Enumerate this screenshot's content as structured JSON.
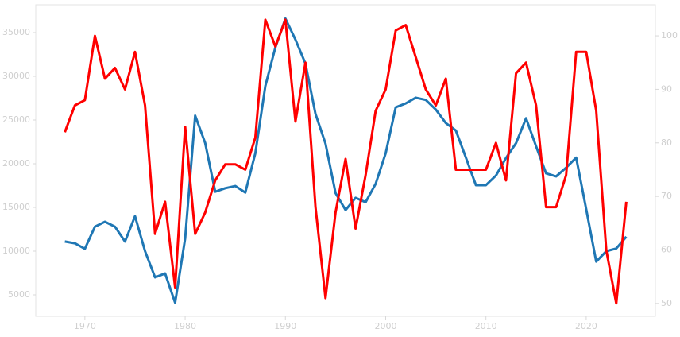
{
  "chart_data": {
    "type": "line",
    "x": [
      1968,
      1969,
      1970,
      1971,
      1972,
      1973,
      1974,
      1975,
      1976,
      1977,
      1978,
      1979,
      1980,
      1981,
      1982,
      1983,
      1984,
      1985,
      1986,
      1987,
      1988,
      1989,
      1990,
      1991,
      1992,
      1993,
      1994,
      1995,
      1996,
      1997,
      1998,
      1999,
      2000,
      2001,
      2002,
      2003,
      2004,
      2005,
      2006,
      2007,
      2008,
      2009,
      2010,
      2011,
      2012,
      2013,
      2014,
      2015,
      2016,
      2017,
      2018,
      2019,
      2020,
      2021,
      2022,
      2023,
      2024
    ],
    "series": [
      {
        "color": "#1f77b4",
        "axis": "y",
        "values": [
          11100,
          10900,
          10270,
          12800,
          13360,
          12800,
          11100,
          14000,
          10000,
          7000,
          7450,
          4100,
          11450,
          25500,
          22360,
          16800,
          17200,
          17450,
          16700,
          21200,
          28900,
          33300,
          36600,
          34200,
          31450,
          25700,
          22300,
          16650,
          14700,
          16100,
          15600,
          17700,
          21200,
          26450,
          26900,
          27550,
          27300,
          26200,
          24650,
          23800,
          20700,
          17550,
          17550,
          18650,
          20650,
          22350,
          25200,
          22000,
          18900,
          18550,
          19550,
          20700,
          14800,
          8800,
          10000,
          10300,
          11650
        ]
      },
      {
        "color": "#ff0000",
        "axis": "y2",
        "values": [
          82,
          87,
          88,
          100,
          92,
          94,
          90,
          97,
          87,
          63,
          69,
          53,
          83,
          63,
          67,
          73,
          76,
          76,
          75,
          81,
          103,
          98,
          103,
          84,
          95,
          68,
          51,
          67,
          77,
          64,
          74,
          86,
          90,
          101,
          102,
          96,
          90,
          87,
          92,
          75,
          75,
          75,
          75,
          80,
          73,
          93,
          95,
          87,
          68,
          68,
          74,
          97,
          97,
          86,
          60,
          50,
          69
        ]
      }
    ],
    "xlim": [
      1965.1,
      2026.9
    ],
    "xticks": [
      1970,
      1980,
      1990,
      2000,
      2010,
      2020
    ],
    "ylim": [
      2545,
      38180
    ],
    "yticks": [
      5000,
      10000,
      15000,
      20000,
      25000,
      30000,
      35000
    ],
    "y2lim": [
      47.6,
      105.8
    ],
    "y2ticks": [
      50,
      60,
      70,
      80,
      90,
      100
    ],
    "grid": false
  }
}
